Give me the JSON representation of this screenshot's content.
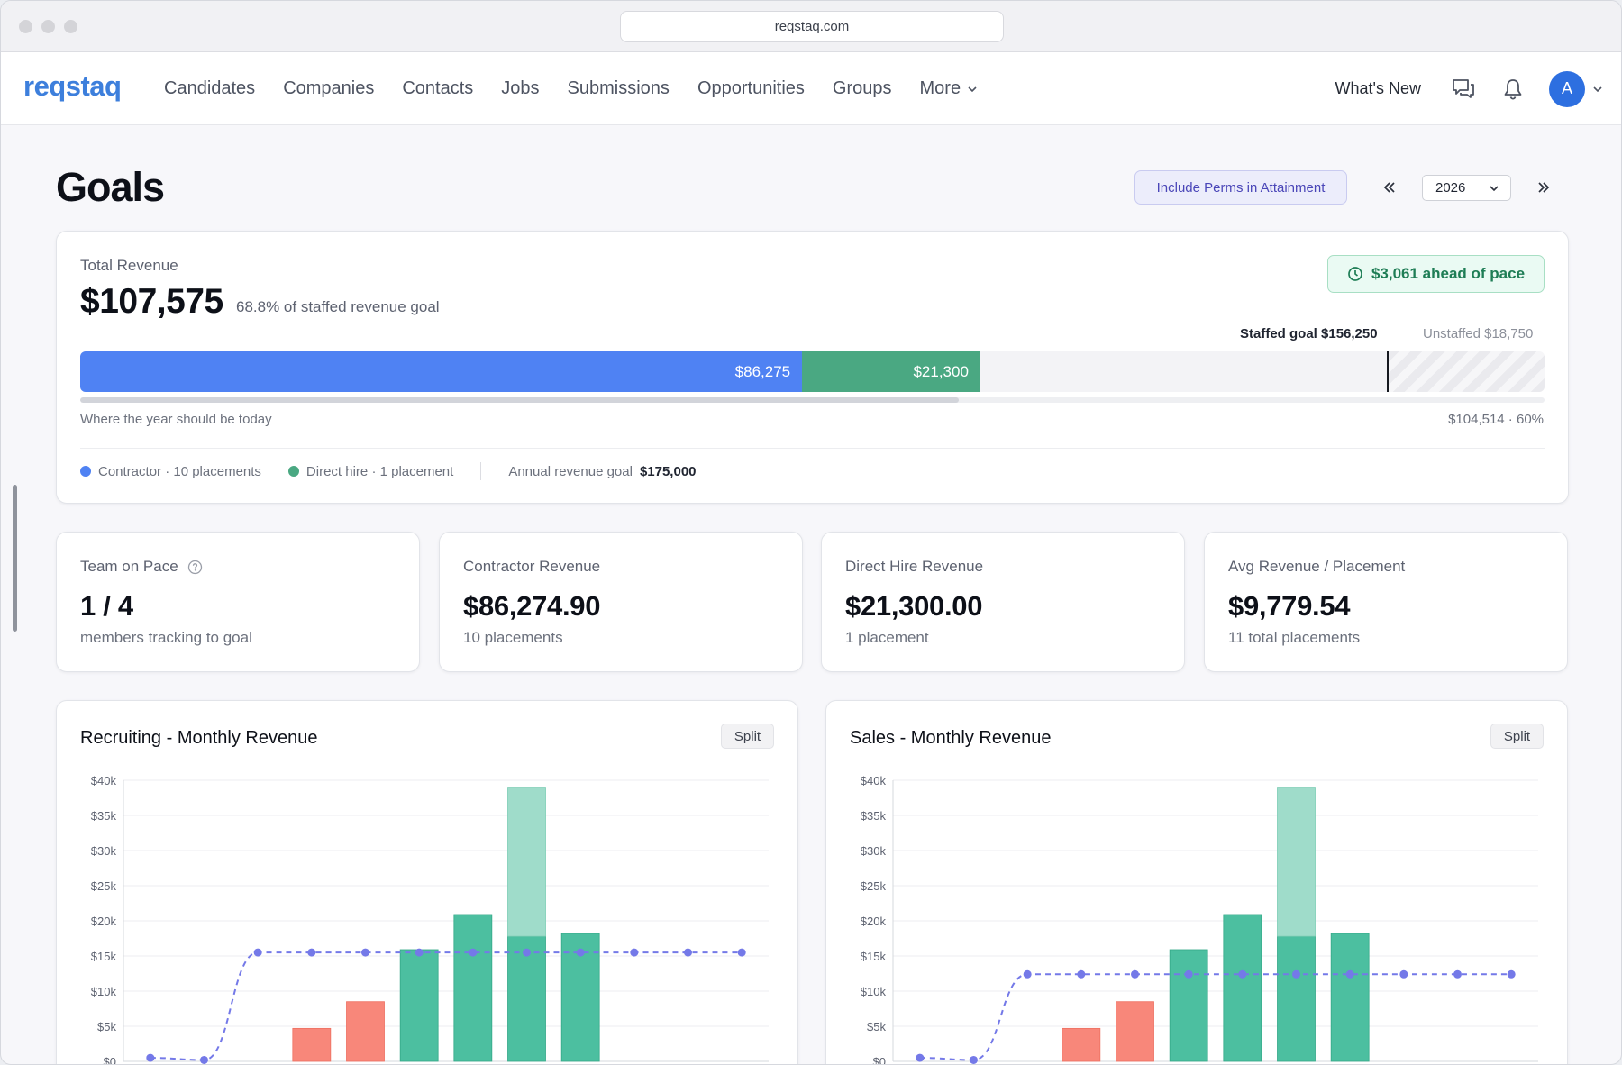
{
  "browser": {
    "url": "reqstaq.com"
  },
  "nav": {
    "logo": "reqstaq",
    "items": [
      "Candidates",
      "Companies",
      "Contacts",
      "Jobs",
      "Submissions",
      "Opportunities",
      "Groups",
      "More"
    ],
    "whats_new": "What's New",
    "avatar_initial": "A"
  },
  "page": {
    "title": "Goals",
    "include_perms_label": "Include Perms in Attainment",
    "year": "2026"
  },
  "revenue": {
    "label": "Total Revenue",
    "amount": "$107,575",
    "pct_text": "68.8% of staffed revenue goal",
    "pace_badge": "$3,061 ahead of pace",
    "staffed_goal_text": "Staffed goal $156,250",
    "unstaffed_goal_text": "Unstaffed $18,750",
    "bar": {
      "contractor_label": "$86,275",
      "direct_label": "$21,300",
      "contractor_value": 86275,
      "direct_value": 21300,
      "staffed_goal_value": 156250,
      "annual_goal_value": 175000,
      "pace_fraction": 0.6
    },
    "pace_caption": "Where the year should be today",
    "pace_value": "$104,514 · 60%",
    "legend": {
      "contractor": "Contractor · 10 placements",
      "direct": "Direct hire · 1 placement",
      "annual_goal_label": "Annual revenue goal",
      "annual_goal_value": "$175,000"
    }
  },
  "stats": [
    {
      "label": "Team on Pace",
      "value": "1 / 4",
      "sub": "members tracking to goal"
    },
    {
      "label": "Contractor Revenue",
      "value": "$86,274.90",
      "sub": "10 placements"
    },
    {
      "label": "Direct Hire Revenue",
      "value": "$21,300.00",
      "sub": "1 placement"
    },
    {
      "label": "Avg Revenue / Placement",
      "value": "$9,779.54",
      "sub": "11 total placements"
    }
  ],
  "colors": {
    "contractor": "#4f82f3",
    "direct": "#4aa882",
    "bar_green": "#4cbfa0",
    "bar_green_light": "#9fdcca",
    "bar_red": "#f8877a",
    "goal_line": "#7479e8",
    "accent": "#3d7fdc"
  },
  "chart_data": [
    {
      "type": "bar",
      "title": "Recruiting - Monthly Revenue",
      "split_label": "Split",
      "ylim": [
        0,
        40000
      ],
      "yticks": [
        "$0",
        "$5k",
        "$10k",
        "$15k",
        "$20k",
        "$25k",
        "$30k",
        "$35k",
        "$40k"
      ],
      "below_goal": [
        0,
        0,
        0,
        4700,
        8500,
        0,
        0,
        0,
        0,
        0,
        0,
        0
      ],
      "at_goal": [
        0,
        0,
        0,
        0,
        0,
        15900,
        20900,
        17800,
        18200,
        0,
        0,
        0
      ],
      "extra": [
        0,
        0,
        0,
        0,
        0,
        0,
        0,
        21100,
        0,
        0,
        0,
        0
      ],
      "goal_line": [
        500,
        200,
        15500,
        15500,
        15500,
        15500,
        15500,
        15500,
        15500,
        15500,
        15500,
        15500
      ],
      "grid": true
    },
    {
      "type": "bar",
      "title": "Sales - Monthly Revenue",
      "split_label": "Split",
      "ylim": [
        0,
        40000
      ],
      "yticks": [
        "$0",
        "$5k",
        "$10k",
        "$15k",
        "$20k",
        "$25k",
        "$30k",
        "$35k",
        "$40k"
      ],
      "below_goal": [
        0,
        0,
        0,
        4700,
        8500,
        0,
        0,
        0,
        0,
        0,
        0,
        0
      ],
      "at_goal": [
        0,
        0,
        0,
        0,
        0,
        15900,
        20900,
        17800,
        18200,
        0,
        0,
        0
      ],
      "extra": [
        0,
        0,
        0,
        0,
        0,
        0,
        0,
        21100,
        0,
        0,
        0,
        0
      ],
      "goal_line": [
        500,
        200,
        12400,
        12400,
        12400,
        12400,
        12400,
        12400,
        12400,
        12400,
        12400,
        12400
      ],
      "grid": true
    }
  ]
}
